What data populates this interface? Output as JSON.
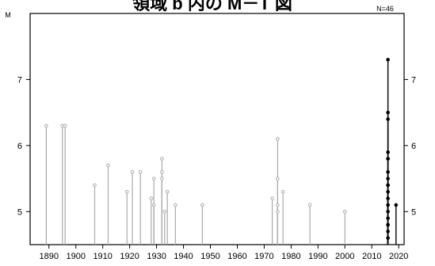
{
  "chart_data": {
    "type": "scatter",
    "style": "stem",
    "title": "領域 b 内の M－T 図",
    "ylabel": "M",
    "count_label": "N=46",
    "xlim": [
      1883,
      2022
    ],
    "ylim": [
      4.5,
      8.0
    ],
    "x_ticks": [
      1890,
      1900,
      1910,
      1920,
      1930,
      1940,
      1950,
      1960,
      1970,
      1980,
      1990,
      2000,
      2010,
      2020
    ],
    "y_ticks": [
      5,
      6,
      7
    ],
    "grid": false,
    "colors": {
      "historical": "#aaaaaa",
      "recent": "#000000",
      "frame": "#000000"
    },
    "series": [
      {
        "values": [
          [
            1889,
            6.3
          ],
          [
            1895,
            6.3
          ],
          [
            1896,
            6.3
          ],
          [
            1907,
            5.4
          ],
          [
            1912,
            5.7
          ],
          [
            1919,
            5.3
          ],
          [
            1921,
            5.6
          ],
          [
            1924,
            5.6
          ],
          [
            1928,
            5.2
          ],
          [
            1929,
            5.5
          ],
          [
            1929,
            5.1
          ],
          [
            1932,
            5.8
          ],
          [
            1932,
            5.6
          ],
          [
            1932,
            5.5
          ],
          [
            1933,
            5.0
          ],
          [
            1934,
            5.3
          ],
          [
            1937,
            5.1
          ],
          [
            1947,
            5.1
          ],
          [
            1973,
            5.2
          ],
          [
            1975,
            6.1
          ],
          [
            1975,
            5.5
          ],
          [
            1975,
            5.1
          ],
          [
            1975,
            5.0
          ],
          [
            1977,
            5.3
          ],
          [
            1987,
            5.1
          ],
          [
            2000,
            5.0
          ]
        ]
      },
      {
        "values": [
          [
            2016,
            7.3
          ],
          [
            2016,
            6.5
          ],
          [
            2016,
            6.4
          ],
          [
            2016,
            5.9
          ],
          [
            2016,
            5.8
          ],
          [
            2016,
            5.8
          ],
          [
            2016,
            5.6
          ],
          [
            2016,
            5.5
          ],
          [
            2016,
            5.4
          ],
          [
            2016,
            5.4
          ],
          [
            2016,
            5.3
          ],
          [
            2016,
            5.2
          ],
          [
            2016,
            5.1
          ],
          [
            2016,
            5.0
          ],
          [
            2016,
            4.9
          ],
          [
            2016,
            4.8
          ],
          [
            2016,
            4.8
          ],
          [
            2016,
            4.7
          ],
          [
            2016,
            4.6
          ],
          [
            2019,
            5.1
          ]
        ]
      }
    ]
  }
}
